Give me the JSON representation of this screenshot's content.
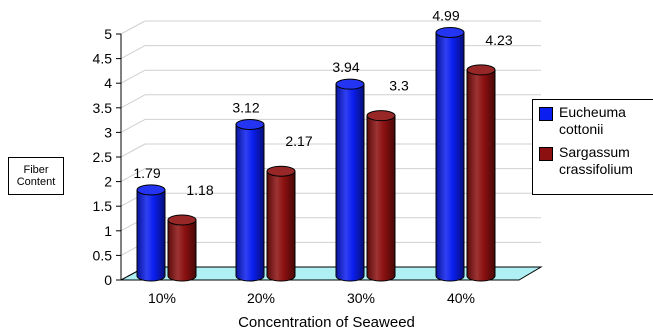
{
  "chart_data": {
    "type": "bar",
    "categories": [
      "10%",
      "20%",
      "30%",
      "40%"
    ],
    "series": [
      {
        "name": "Eucheuma cottonii",
        "name_lines": [
          "Eucheuma",
          "cottonii"
        ],
        "values": [
          1.79,
          3.12,
          3.94,
          4.99
        ],
        "labels": [
          "1.79",
          "3.12",
          "3.94",
          "4.99"
        ],
        "color": "#0b1ef0"
      },
      {
        "name": "Sargassum crassifolium",
        "name_lines": [
          "Sargassum",
          "crassifolium"
        ],
        "values": [
          1.18,
          2.17,
          3.3,
          4.23
        ],
        "labels": [
          "1.18",
          "2.17",
          "3.3",
          "4.23"
        ],
        "color": "#8c1010"
      }
    ],
    "xlabel": "Concentration of Seaweed",
    "ylabel_lines": [
      "Fiber",
      "Content"
    ],
    "ylim": [
      0,
      5
    ],
    "yticks": [
      "0",
      "0.5",
      "1",
      "1.5",
      "2",
      "2.5",
      "3",
      "3.5",
      "4",
      "4.5",
      "5"
    ],
    "grid": true,
    "legend_position": "right",
    "floor_color": "#aef0f4"
  }
}
